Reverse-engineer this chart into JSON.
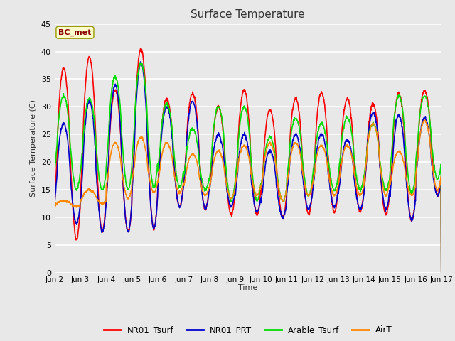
{
  "title": "Surface Temperature",
  "ylabel": "Surface Temperature (C)",
  "xlabel": "Time",
  "annotation": "BC_met",
  "ylim": [
    0,
    45
  ],
  "fig_bg": "#e8e8e8",
  "ax_bg": "#e8e8e8",
  "grid_color": "#ffffff",
  "series": {
    "NR01_Tsurf": {
      "color": "#ff0000",
      "lw": 1.2
    },
    "NR01_PRT": {
      "color": "#0000cc",
      "lw": 1.2
    },
    "Arable_Tsurf": {
      "color": "#00dd00",
      "lw": 1.2
    },
    "AirT": {
      "color": "#ff8800",
      "lw": 1.2
    }
  },
  "xtick_labels": [
    "Jun 2",
    "Jun 3",
    "Jun 4",
    "Jun 5",
    "Jun 6",
    "Jun 7",
    "Jun 8",
    "Jun 9",
    "Jun 10",
    "Jun 11",
    "Jun 12",
    "Jun 13",
    "Jun 14",
    "Jun 15",
    "Jun 16",
    "Jun 17"
  ],
  "xtick_positions": [
    0,
    1,
    2,
    3,
    4,
    5,
    6,
    7,
    8,
    9,
    10,
    11,
    12,
    13,
    14,
    15
  ],
  "ytick_positions": [
    0,
    5,
    10,
    15,
    20,
    25,
    30,
    35,
    40,
    45
  ]
}
